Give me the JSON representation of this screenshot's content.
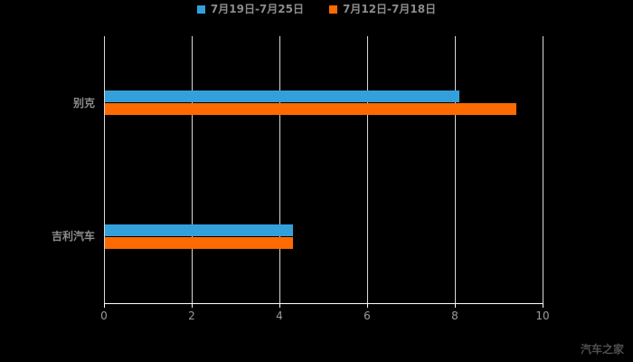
{
  "page": {
    "background": "#000000"
  },
  "legend": {
    "items": [
      {
        "label": "7月19日-7月25日",
        "color": "#33A0DC"
      },
      {
        "label": "7月12日-7月18日",
        "color": "#FF6A00"
      }
    ]
  },
  "chart_data": {
    "type": "bar",
    "orientation": "horizontal",
    "title": "",
    "categories": [
      "别克",
      "吉利汽车"
    ],
    "series": [
      {
        "name": "7月19日-7月25日",
        "color": "#33A0DC",
        "values": [
          8.1,
          4.3
        ]
      },
      {
        "name": "7月12日-7月18日",
        "color": "#FF6A00",
        "values": [
          9.4,
          4.3
        ]
      }
    ],
    "xlim": [
      0,
      10
    ],
    "xticks": [
      0,
      2,
      4,
      6,
      8,
      10
    ],
    "grid": true,
    "legend_position": "top",
    "background": "#000000"
  },
  "watermark": "汽车之家"
}
